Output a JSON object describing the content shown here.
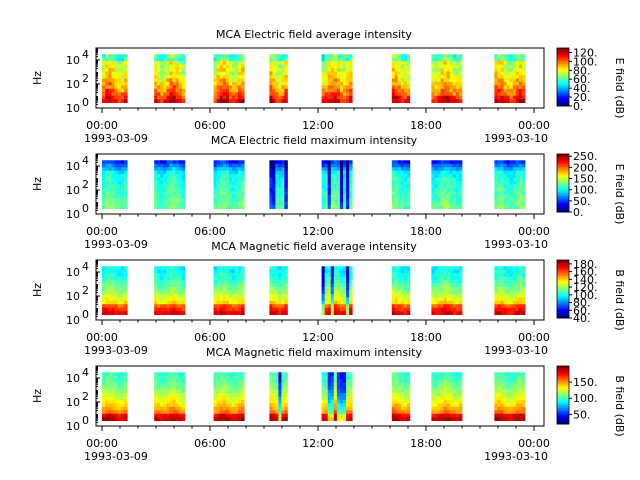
{
  "chart_data": [
    {
      "type": "heatmap",
      "title": "MCA  Electric field average intensity",
      "ylabel": "Hz",
      "colorbar_label": "E field (dB)",
      "colorbar_range": [
        0,
        130
      ],
      "colorbar_ticks": [
        "0.",
        "20.",
        "40.",
        "60.",
        "80.",
        "100.",
        "120."
      ],
      "colorbar_tick_values": [
        0,
        20,
        40,
        60,
        80,
        100,
        120
      ],
      "y_ticks": [
        "10",
        "10",
        "10"
      ],
      "y_tick_exponents": [
        "0",
        "2",
        "4"
      ],
      "y_tick_values": [
        1,
        100,
        10000
      ],
      "ylim": [
        1,
        100000
      ],
      "yscale": "log",
      "x_ticks": [
        "00:00",
        "06:00",
        "12:00",
        "18:00",
        "00:00"
      ],
      "x_tick_hours": [
        0,
        6,
        12,
        18,
        24
      ],
      "date_start": "1993-03-09",
      "date_end": "1993-03-10",
      "style": "avgE",
      "intervals": [
        [
          0.0,
          1.4
        ],
        [
          2.9,
          4.6
        ],
        [
          6.2,
          7.9
        ],
        [
          9.3,
          10.3
        ],
        [
          12.2,
          13.9
        ],
        [
          16.1,
          17.1
        ],
        [
          18.3,
          20.0
        ],
        [
          21.8,
          23.5
        ]
      ]
    },
    {
      "type": "heatmap",
      "title": "MCA  Electric field maximum intensity",
      "ylabel": "Hz",
      "colorbar_label": "E field (dB)",
      "colorbar_range": [
        0,
        260
      ],
      "colorbar_ticks": [
        "0.",
        "50.",
        "100.",
        "150.",
        "200.",
        "250."
      ],
      "colorbar_tick_values": [
        0,
        50,
        100,
        150,
        200,
        250
      ],
      "y_ticks": [
        "10",
        "10",
        "10"
      ],
      "y_tick_exponents": [
        "0",
        "2",
        "4"
      ],
      "y_tick_values": [
        1,
        100,
        10000
      ],
      "ylim": [
        1,
        100000
      ],
      "yscale": "log",
      "x_ticks": [
        "00:00",
        "06:00",
        "12:00",
        "18:00",
        "00:00"
      ],
      "x_tick_hours": [
        0,
        6,
        12,
        18,
        24
      ],
      "date_start": "1993-03-09",
      "date_end": "1993-03-10",
      "style": "maxE",
      "intervals": [
        [
          0.0,
          1.4
        ],
        [
          2.9,
          4.6
        ],
        [
          6.2,
          7.9
        ],
        [
          9.3,
          10.3
        ],
        [
          12.2,
          13.9
        ],
        [
          16.1,
          17.1
        ],
        [
          18.3,
          20.0
        ],
        [
          21.8,
          23.5
        ]
      ]
    },
    {
      "type": "heatmap",
      "title": "MCA  Magnetic field average intensity",
      "ylabel": "Hz",
      "colorbar_label": "B field (dB)",
      "colorbar_range": [
        40,
        190
      ],
      "colorbar_ticks": [
        "40.",
        "60.",
        "80.",
        "100.",
        "120.",
        "140.",
        "160.",
        "180."
      ],
      "colorbar_tick_values": [
        40,
        60,
        80,
        100,
        120,
        140,
        160,
        180
      ],
      "y_ticks": [
        "10",
        "10",
        "10"
      ],
      "y_tick_exponents": [
        "0",
        "2",
        "4"
      ],
      "y_tick_values": [
        1,
        100,
        10000
      ],
      "ylim": [
        1,
        100000
      ],
      "yscale": "log",
      "x_ticks": [
        "00:00",
        "06:00",
        "12:00",
        "18:00",
        "00:00"
      ],
      "x_tick_hours": [
        0,
        6,
        12,
        18,
        24
      ],
      "date_start": "1993-03-09",
      "date_end": "1993-03-10",
      "style": "avgB",
      "intervals": [
        [
          0.0,
          1.4
        ],
        [
          2.9,
          4.6
        ],
        [
          6.2,
          7.9
        ],
        [
          9.3,
          10.3
        ],
        [
          12.2,
          13.9
        ],
        [
          16.1,
          17.1
        ],
        [
          18.3,
          20.0
        ],
        [
          21.8,
          23.5
        ]
      ]
    },
    {
      "type": "heatmap",
      "title": "MCA  Magnetic field maximum intensity",
      "ylabel": "Hz",
      "colorbar_label": "B field (dB)",
      "colorbar_range": [
        20,
        200
      ],
      "colorbar_ticks": [
        "50.",
        "100.",
        "150."
      ],
      "colorbar_tick_values": [
        50,
        100,
        150
      ],
      "y_ticks": [
        "10",
        "10",
        "10"
      ],
      "y_tick_exponents": [
        "0",
        "2",
        "4"
      ],
      "y_tick_values": [
        1,
        100,
        10000
      ],
      "ylim": [
        1,
        100000
      ],
      "yscale": "log",
      "x_ticks": [
        "00:00",
        "06:00",
        "12:00",
        "18:00",
        "00:00"
      ],
      "x_tick_hours": [
        0,
        6,
        12,
        18,
        24
      ],
      "date_start": "1993-03-09",
      "date_end": "1993-03-10",
      "style": "maxB",
      "intervals": [
        [
          0.0,
          1.4
        ],
        [
          2.9,
          4.6
        ],
        [
          6.2,
          7.9
        ],
        [
          9.3,
          10.3
        ],
        [
          12.2,
          13.9
        ],
        [
          16.1,
          17.1
        ],
        [
          18.3,
          20.0
        ],
        [
          21.8,
          23.5
        ]
      ]
    }
  ]
}
